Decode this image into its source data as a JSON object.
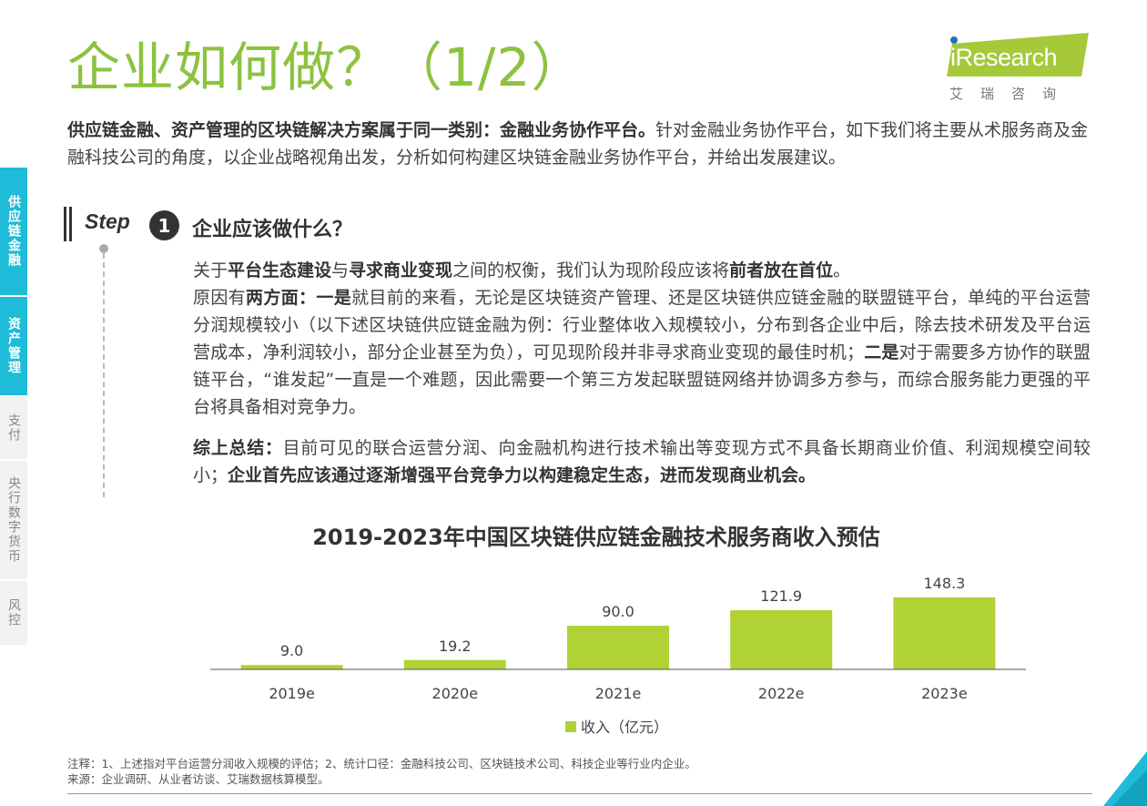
{
  "header": {
    "title": "企业如何做？（1/2）",
    "logo_text": "iResearch",
    "logo_sub": "艾瑞咨询"
  },
  "intro": {
    "bold": "供应链金融、资产管理的区块链解决方案属于同一类别：金融业务协作平台。",
    "rest": "针对金融业务协作平台，如下我们将主要从术服务商及金融科技公司的角度，以企业战略视角出发，分析如何构建区块链金融业务协作平台，并给出发展建议。"
  },
  "side_nav": [
    {
      "label": "供应链金融",
      "active": true
    },
    {
      "label": "资产管理",
      "active": true
    },
    {
      "label": "支付",
      "active": false
    },
    {
      "label": "央行数字货币",
      "active": false
    },
    {
      "label": "风控",
      "active": false
    }
  ],
  "step": {
    "label": "Step",
    "number": "1",
    "question": "企业应该做什么？"
  },
  "body": {
    "p1_a": "关于",
    "p1_b": "平台生态建设",
    "p1_c": "与",
    "p1_d": "寻求商业变现",
    "p1_e": "之间的权衡，我们认为现阶段应该将",
    "p1_f": "前者放在首位",
    "p1_g": "。",
    "p2_a": "原因有",
    "p2_b": "两方面：一是",
    "p2_c": "就目前的来看，无论是区块链资产管理、还是区块链供应链金融的联盟链平台，单纯的平台运营分润规模较小（以下述区块链供应链金融为例：行业整体收入规模较小，分布到各企业中后，除去技术研发及平台运营成本，净利润较小，部分企业甚至为负），可见现阶段并非寻求商业变现的最佳时机；",
    "p2_d": "二是",
    "p2_e": "对于需要多方协作的联盟链平台，“谁发起”一直是一个难题，因此需要一个第三方发起联盟链网络并协调多方参与，而综合服务能力更强的平台将具备相对竞争力。",
    "p3_a": "综上总结：",
    "p3_b": "目前可见的联合运营分润、向金融机构进行技术输出等变现方式不具备长期商业价值、利润规模空间较小；",
    "p3_c": "企业首先应该通过逐渐增强平台竞争力以构建稳定生态，进而发现商业机会。"
  },
  "chart_data": {
    "type": "bar",
    "title": "2019-2023年中国区块链供应链金融技术服务商收入预估",
    "categories": [
      "2019e",
      "2020e",
      "2021e",
      "2022e",
      "2023e"
    ],
    "series": [
      {
        "name": "收入（亿元）",
        "values": [
          9.0,
          19.2,
          90.0,
          121.9,
          148.3
        ],
        "color": "#b0d235"
      }
    ],
    "value_labels": [
      "9.0",
      "19.2",
      "90.0",
      "121.9",
      "148.3"
    ],
    "ylim": [
      0,
      148.3
    ],
    "legend": "bottom-center",
    "grid": false
  },
  "notes": {
    "line1": "注释：1、上述指对平台运营分润收入规模的评估；2、统计口径：金融科技公司、区块链技术公司、科技企业等行业内企业。",
    "line2": "来源：企业调研、从业者访谈、艾瑞数据核算模型。"
  },
  "colors": {
    "accent_green": "#8dc23f",
    "nav_active": "#1ebcd9",
    "bar": "#b0d235"
  }
}
